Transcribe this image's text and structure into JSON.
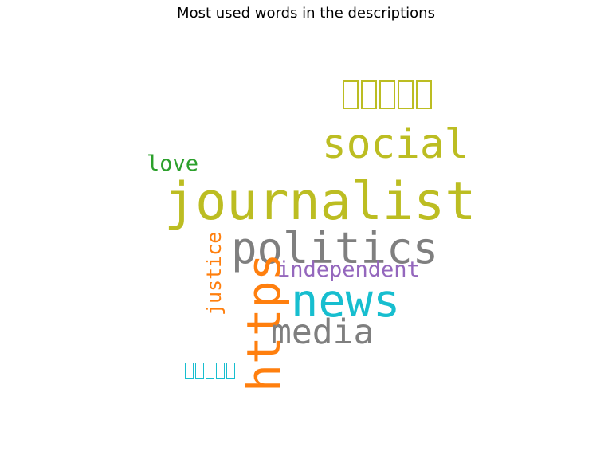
{
  "title": "Most used words in the descriptions",
  "words": [
    {
      "id": "tofu-top",
      "text": "□□□□□",
      "color": "#bcbd22"
    },
    {
      "id": "social",
      "text": "social",
      "color": "#bcbd22"
    },
    {
      "id": "love",
      "text": "love",
      "color": "#2ca02c"
    },
    {
      "id": "journalist",
      "text": "journalist",
      "color": "#bcbd22"
    },
    {
      "id": "politics",
      "text": "politics",
      "color": "#7f7f7f"
    },
    {
      "id": "justice",
      "text": "justice",
      "color": "#ff7f0e"
    },
    {
      "id": "independent",
      "text": "independent",
      "color": "#9467bd"
    },
    {
      "id": "https",
      "text": "https",
      "color": "#ff7f0e"
    },
    {
      "id": "news",
      "text": "news",
      "color": "#17becf"
    },
    {
      "id": "media",
      "text": "media",
      "color": "#7f7f7f"
    },
    {
      "id": "tofu-bottom",
      "text": "□□□□□",
      "color": "#17becf"
    }
  ]
}
